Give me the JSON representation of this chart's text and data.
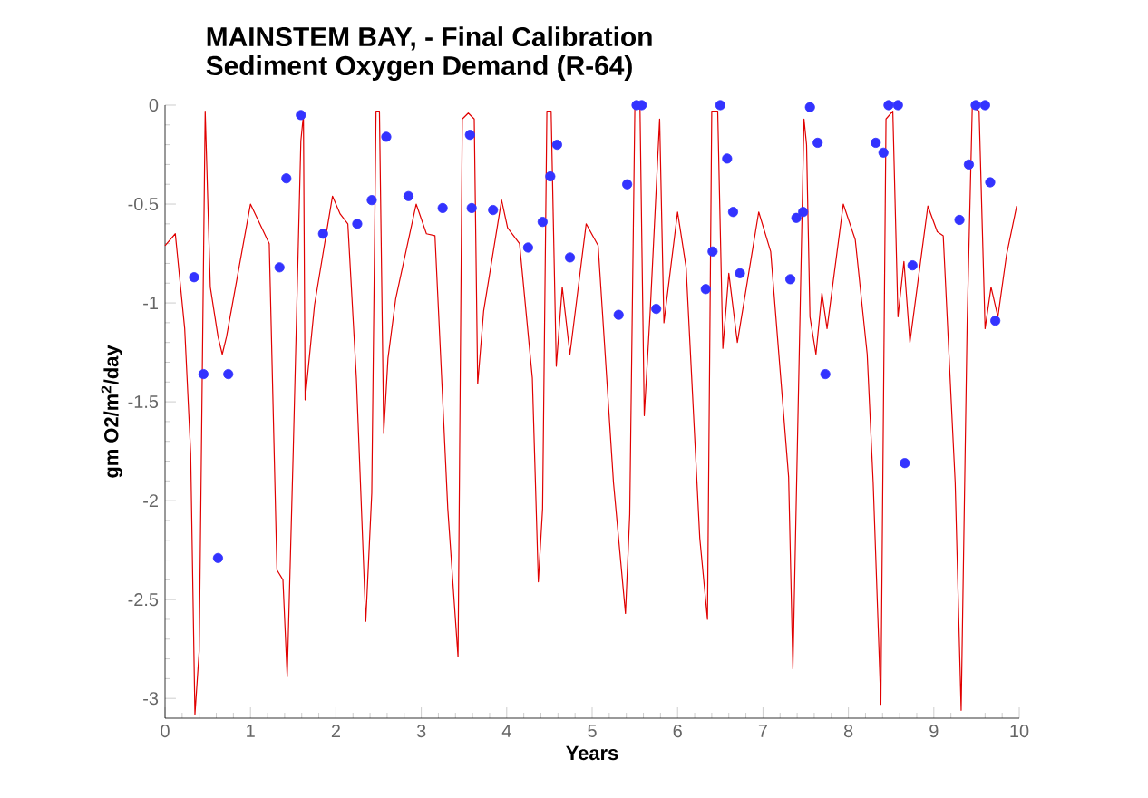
{
  "chart_data": {
    "type": "line",
    "title": "MAINSTEM BAY, - Final Calibration",
    "subtitle": "Sediment Oxygen Demand (R-64)",
    "xlabel": "Years",
    "ylabel": "gm O2/m$^{2}$/day",
    "xlim": [
      0,
      10
    ],
    "xticks": [
      0,
      1,
      2,
      3,
      4,
      5,
      6,
      7,
      8,
      9,
      10
    ],
    "ylim": [
      -3.1,
      0
    ],
    "yticks": [
      -3,
      -2.5,
      -2,
      -1.5,
      -1,
      -0.5,
      0
    ],
    "series": [
      {
        "color": "#e00000",
        "marker": "none",
        "x": [
          0,
          0.12,
          0.23,
          0.3,
          0.35,
          0.4,
          0.47,
          0.53,
          0.62,
          0.67,
          0.72,
          1.0,
          1.22,
          1.31,
          1.38,
          1.43,
          1.5,
          1.59,
          1.62,
          1.64,
          1.75,
          1.96,
          2.05,
          2.14,
          2.24,
          2.35,
          2.42,
          2.47,
          2.51,
          2.56,
          2.61,
          2.7,
          2.94,
          3.06,
          3.16,
          3.31,
          3.43,
          3.48,
          3.55,
          3.62,
          3.66,
          3.73,
          3.94,
          4.01,
          4.15,
          4.3,
          4.37,
          4.42,
          4.47,
          4.52,
          4.58,
          4.65,
          4.74,
          4.93,
          5.07,
          5.25,
          5.39,
          5.44,
          5.5,
          5.56,
          5.61,
          5.68,
          5.79,
          5.84,
          6.0,
          6.1,
          6.26,
          6.35,
          6.4,
          6.47,
          6.53,
          6.6,
          6.7,
          6.95,
          7.09,
          7.3,
          7.35,
          7.48,
          7.51,
          7.55,
          7.62,
          7.69,
          7.75,
          7.94,
          8.08,
          8.22,
          8.29,
          8.38,
          8.44,
          8.52,
          8.58,
          8.65,
          8.72,
          8.93,
          9.04,
          9.11,
          9.25,
          9.32,
          9.39,
          9.45,
          9.53,
          9.6,
          9.67,
          9.75,
          9.85,
          9.97
        ],
        "values": [
          -0.71,
          -0.65,
          -1.13,
          -1.76,
          -3.08,
          -2.76,
          -0.03,
          -0.92,
          -1.17,
          -1.26,
          -1.17,
          -0.5,
          -0.7,
          -2.35,
          -2.4,
          -2.89,
          -1.76,
          -0.18,
          -0.05,
          -1.49,
          -1.01,
          -0.46,
          -0.55,
          -0.6,
          -1.38,
          -2.61,
          -1.96,
          -0.03,
          -0.03,
          -1.66,
          -1.28,
          -0.98,
          -0.5,
          -0.65,
          -0.66,
          -2.04,
          -2.79,
          -0.07,
          -0.04,
          -0.07,
          -1.41,
          -1.04,
          -0.48,
          -0.62,
          -0.7,
          -1.38,
          -2.41,
          -2.04,
          -0.03,
          -0.03,
          -1.32,
          -0.92,
          -1.26,
          -0.6,
          -0.71,
          -1.91,
          -2.57,
          -2.07,
          -0.01,
          -0.01,
          -1.57,
          -1.04,
          -0.07,
          -1.1,
          -0.54,
          -0.82,
          -2.19,
          -2.6,
          -0.03,
          -0.03,
          -1.23,
          -0.85,
          -1.2,
          -0.54,
          -0.74,
          -1.88,
          -2.85,
          -0.07,
          -0.2,
          -1.07,
          -1.26,
          -0.95,
          -1.13,
          -0.5,
          -0.68,
          -1.26,
          -1.91,
          -3.03,
          -0.07,
          -0.03,
          -1.07,
          -0.79,
          -1.2,
          -0.51,
          -0.64,
          -0.66,
          -1.91,
          -3.06,
          -1.1,
          -0.01,
          -0.03,
          -1.13,
          -0.92,
          -1.07,
          -0.76,
          -0.51
        ]
      },
      {
        "type": "scatter",
        "color": "#3333ff",
        "marker": "circle",
        "x": [
          0.34,
          0.45,
          0.62,
          0.74,
          1.34,
          1.42,
          1.59,
          1.85,
          2.25,
          2.42,
          2.59,
          2.85,
          3.25,
          3.57,
          3.59,
          3.84,
          4.25,
          4.42,
          4.51,
          4.59,
          4.74,
          5.31,
          5.41,
          5.52,
          5.58,
          5.75,
          6.33,
          6.41,
          6.5,
          6.58,
          6.65,
          6.73,
          7.32,
          7.39,
          7.47,
          7.55,
          7.64,
          7.73,
          8.32,
          8.41,
          8.47,
          8.58,
          8.66,
          8.75,
          9.3,
          9.41,
          9.49,
          9.6,
          9.66,
          9.72
        ],
        "values": [
          -0.87,
          -1.36,
          -2.29,
          -1.36,
          -0.82,
          -0.37,
          -0.05,
          -0.65,
          -0.6,
          -0.48,
          -0.16,
          -0.46,
          -0.52,
          -0.15,
          -0.52,
          -0.53,
          -0.72,
          -0.59,
          -0.36,
          -0.2,
          -0.77,
          -1.06,
          -0.4,
          0,
          0,
          -1.03,
          -0.93,
          -0.74,
          0,
          -0.27,
          -0.54,
          -0.85,
          -0.88,
          -0.57,
          -0.54,
          -0.01,
          -0.19,
          -1.36,
          -0.19,
          -0.24,
          0,
          0,
          -1.81,
          -0.81,
          -0.58,
          -0.3,
          0,
          0,
          -0.39,
          -1.09
        ]
      }
    ]
  }
}
